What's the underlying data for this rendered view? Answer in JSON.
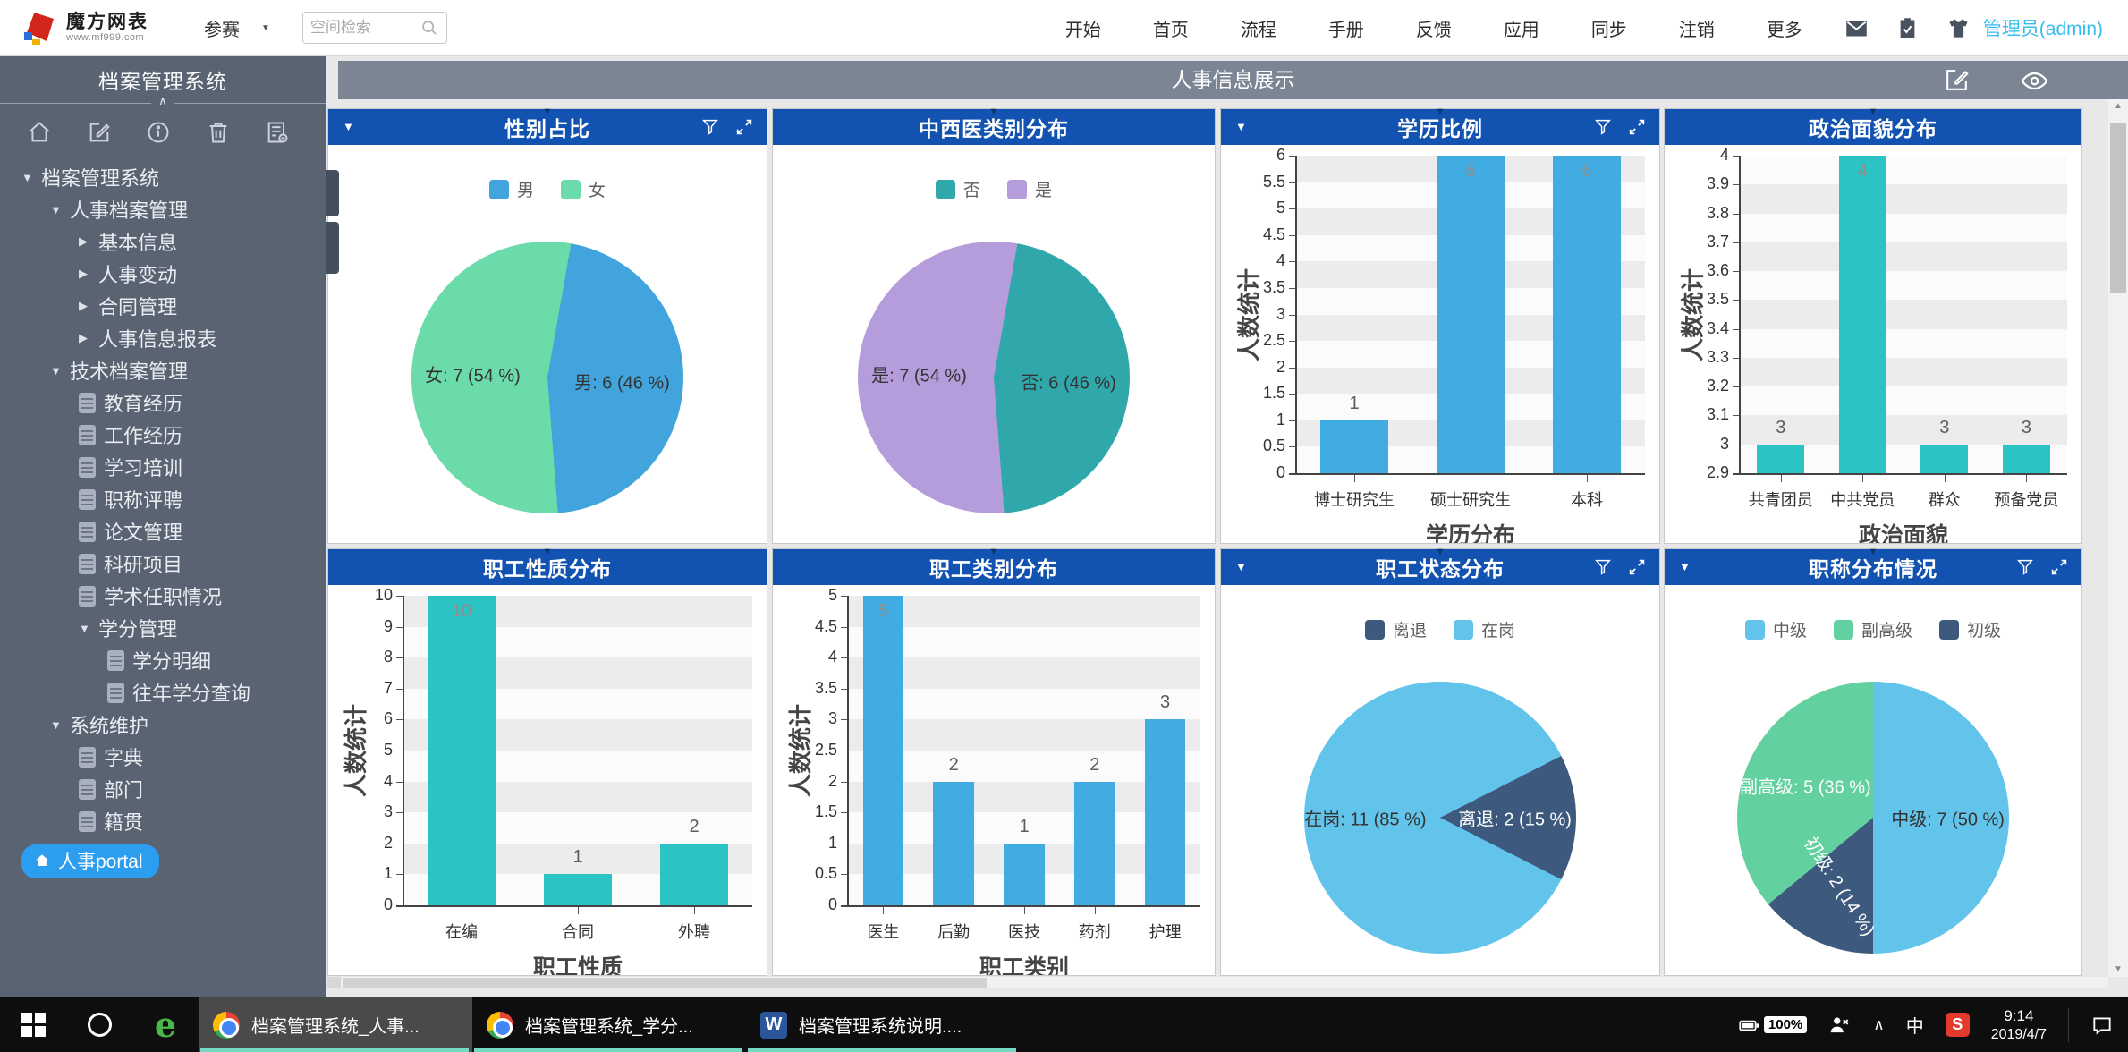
{
  "topbar": {
    "brand_name": "魔方网表",
    "brand_url": "www.mf999.com",
    "space_dropdown": "参赛",
    "search_placeholder": "空间检索",
    "nav": [
      "开始",
      "首页",
      "流程",
      "手册",
      "反馈",
      "应用",
      "同步",
      "注销",
      "更多"
    ],
    "icon_names": [
      "mail-icon",
      "clipboard-icon",
      "shirt-icon"
    ],
    "user": "管理员(admin)"
  },
  "sidebar": {
    "title": "档案管理系统",
    "toolbar_icon_names": [
      "home-icon",
      "edit-icon",
      "info-icon",
      "trash-icon",
      "report-icon"
    ],
    "tree": [
      {
        "label": "档案管理系统",
        "level": 0,
        "caret": "down"
      },
      {
        "label": "人事档案管理",
        "level": 1,
        "caret": "down"
      },
      {
        "label": "基本信息",
        "level": 2,
        "caret": "right"
      },
      {
        "label": "人事变动",
        "level": 2,
        "caret": "right"
      },
      {
        "label": "合同管理",
        "level": 2,
        "caret": "right"
      },
      {
        "label": "人事信息报表",
        "level": 2,
        "caret": "right"
      },
      {
        "label": "技术档案管理",
        "level": 1,
        "caret": "down"
      },
      {
        "label": "教育经历",
        "level": 2,
        "icon": "doc"
      },
      {
        "label": "工作经历",
        "level": 2,
        "icon": "doc"
      },
      {
        "label": "学习培训",
        "level": 2,
        "icon": "doc"
      },
      {
        "label": "职称评聘",
        "level": 2,
        "icon": "doc"
      },
      {
        "label": "论文管理",
        "level": 2,
        "icon": "doc"
      },
      {
        "label": "科研项目",
        "level": 2,
        "icon": "doc"
      },
      {
        "label": "学术任职情况",
        "level": 2,
        "icon": "doc"
      },
      {
        "label": "学分管理",
        "level": 2,
        "caret": "down"
      },
      {
        "label": "学分明细",
        "level": 3,
        "icon": "doc"
      },
      {
        "label": "往年学分查询",
        "level": 3,
        "icon": "doc"
      },
      {
        "label": "系统维护",
        "level": 1,
        "caret": "down"
      },
      {
        "label": "字典",
        "level": 2,
        "icon": "doc"
      },
      {
        "label": "部门",
        "level": 2,
        "icon": "doc"
      },
      {
        "label": "籍贯",
        "level": 2,
        "icon": "doc"
      }
    ],
    "portal_label": "人事portal"
  },
  "main": {
    "title": "人事信息展示"
  },
  "chart_data": [
    {
      "type": "pie",
      "title": "性别占比",
      "header": {
        "caret_left": true,
        "filter": true,
        "expand": true
      },
      "legend": [
        "男",
        "女"
      ],
      "legend_position": "top",
      "start_angle": 10,
      "slices": [
        {
          "name": "男",
          "value": 6,
          "pct": 46,
          "color": "#41a4dc",
          "label": "男: 6 (46 %)",
          "label_color": "#333333"
        },
        {
          "name": "女",
          "value": 7,
          "pct": 54,
          "color": "#6bdbaa",
          "label": "女: 7 (54 %)",
          "label_color": "#333333"
        }
      ]
    },
    {
      "type": "pie",
      "title": "中西医类别分布",
      "header": {},
      "legend": [
        "否",
        "是"
      ],
      "legend_position": "top",
      "start_angle": 10,
      "slices": [
        {
          "name": "否",
          "value": 6,
          "pct": 46,
          "color": "#30a8ab",
          "label": "否: 6 (46 %)",
          "label_color": "#333333"
        },
        {
          "name": "是",
          "value": 7,
          "pct": 54,
          "color": "#b59cda",
          "label": "是: 7 (54 %)",
          "label_color": "#333333"
        }
      ]
    },
    {
      "type": "bar",
      "title": "学历比例",
      "header": {
        "caret_left": true,
        "filter": true,
        "expand": true
      },
      "categories": [
        "博士研究生",
        "硕士研究生",
        "本科"
      ],
      "values": [
        1,
        6,
        6
      ],
      "ylabel": "人数统计",
      "xlabel": "学历分布",
      "ylim": [
        0,
        6
      ],
      "ystep": 0.5,
      "grid": "split-area",
      "color": "#41ace1"
    },
    {
      "type": "bar",
      "title": "政治面貌分布",
      "header": {},
      "categories": [
        "共青团员",
        "中共党员",
        "群众",
        "预备党员"
      ],
      "values": [
        3,
        4,
        3,
        3
      ],
      "ylabel": "人数统计",
      "xlabel": "政治面貌",
      "ylim": [
        2.9,
        4
      ],
      "ystep": 0.1,
      "grid": "split-area",
      "color": "#2cc3c5"
    },
    {
      "type": "bar",
      "title": "职工性质分布",
      "header": {},
      "categories": [
        "在编",
        "合同",
        "外聘"
      ],
      "values": [
        10,
        1,
        2
      ],
      "ylabel": "人数统计",
      "xlabel": "职工性质",
      "ylim": [
        0,
        10
      ],
      "ystep": 1,
      "grid": "split-area",
      "color": "#2cc3c5"
    },
    {
      "type": "bar",
      "title": "职工类别分布",
      "header": {},
      "categories": [
        "医生",
        "后勤",
        "医技",
        "药剂",
        "护理"
      ],
      "values": [
        5,
        2,
        1,
        2,
        3
      ],
      "ylabel": "人数统计",
      "xlabel": "职工类别",
      "ylim": [
        0,
        5
      ],
      "ystep": 0.5,
      "grid": "split-area",
      "color": "#41ace1"
    },
    {
      "type": "pie",
      "title": "职工状态分布",
      "header": {
        "caret_left": true,
        "filter": true,
        "expand": true
      },
      "legend": [
        "离退",
        "在岗"
      ],
      "legend_position": "top",
      "start_angle": 63,
      "slices": [
        {
          "name": "离退",
          "value": 2,
          "pct": 15,
          "color": "#3d5a7e",
          "label": "离退: 2 (15 %)",
          "label_color": "#ffffff"
        },
        {
          "name": "在岗",
          "value": 11,
          "pct": 85,
          "color": "#63c4eb",
          "label": "在岗: 11 (85 %)",
          "label_color": "#333333"
        }
      ]
    },
    {
      "type": "pie",
      "title": "职称分布情况",
      "header": {
        "caret_left": true,
        "filter": true,
        "expand": true
      },
      "legend": [
        "中级",
        "副高级",
        "初级"
      ],
      "legend_position": "top",
      "start_angle": 0,
      "slices": [
        {
          "name": "中级",
          "value": 7,
          "pct": 50,
          "color": "#63c4eb",
          "label": "中级: 7 (50 %)",
          "label_color": "#333333"
        },
        {
          "name": "初级",
          "value": 2,
          "pct": 14,
          "color": "#3d5a7e",
          "label": "初级: 2 (14 %)",
          "label_color": "#ffffff",
          "label_rotate": 57
        },
        {
          "name": "副高级",
          "value": 5,
          "pct": 36,
          "color": "#62d09f",
          "label": "副高级: 5 (36 %)",
          "label_color": "#ffffff"
        }
      ]
    }
  ],
  "taskbar": {
    "tasks": [
      {
        "icon": "chrome",
        "label": "档案管理系统_人事..."
      },
      {
        "icon": "chrome",
        "label": "档案管理系统_学分..."
      },
      {
        "icon": "word",
        "label": "档案管理系统说明...."
      }
    ],
    "tray": {
      "battery": "100%",
      "ime": "中",
      "time": "9:14",
      "date": "2019/4/7"
    }
  }
}
